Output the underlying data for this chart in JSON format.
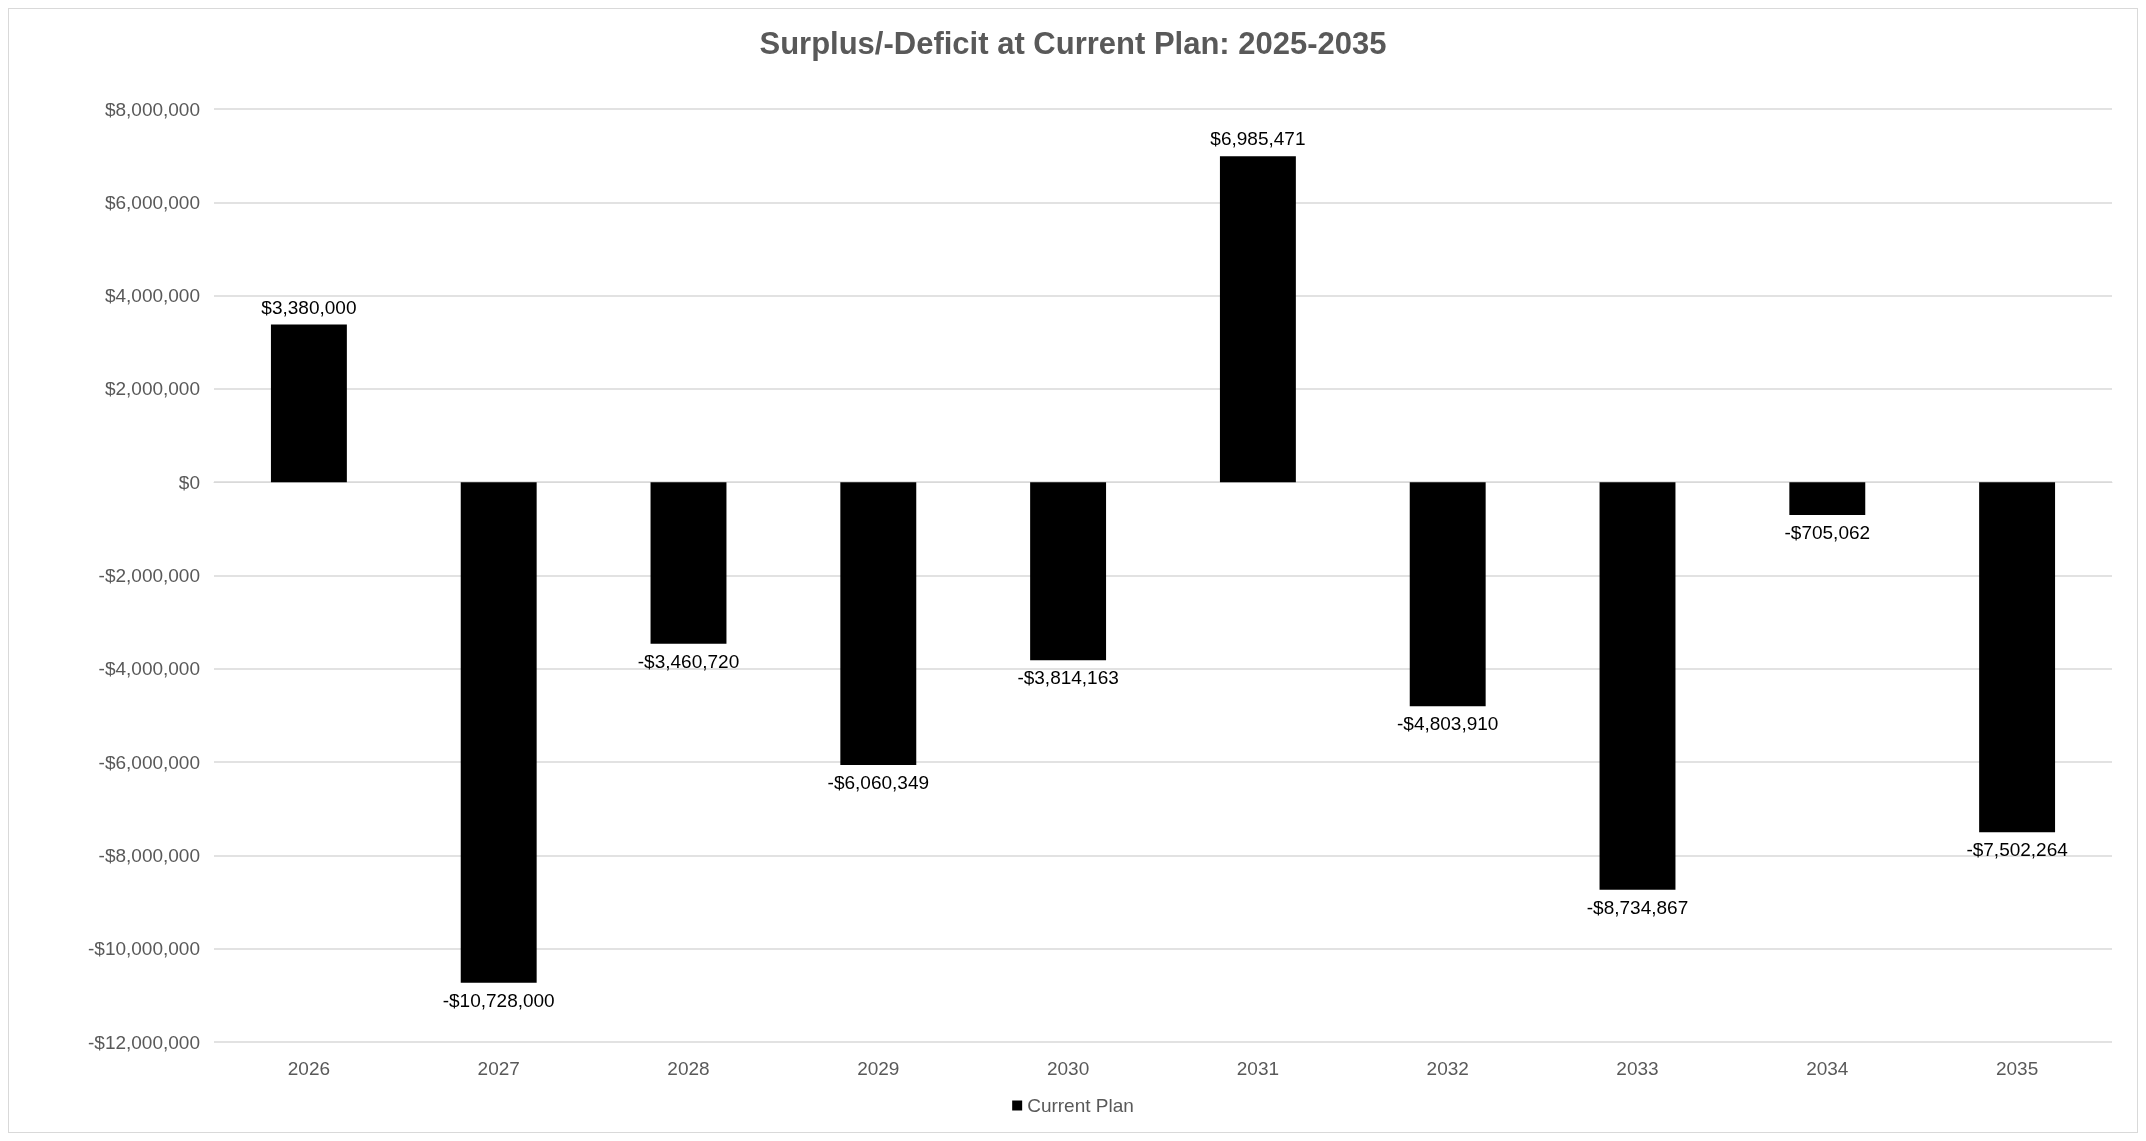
{
  "chart_data": {
    "type": "bar",
    "title": "Surplus/-Deficit at Current Plan: 2025-2035",
    "categories": [
      "2026",
      "2027",
      "2028",
      "2029",
      "2030",
      "2031",
      "2032",
      "2033",
      "2034",
      "2035"
    ],
    "series": [
      {
        "name": "Current Plan",
        "color": "#000000",
        "values": [
          3380000,
          -10728000,
          -3460720,
          -6060349,
          -3814163,
          6985471,
          -4803910,
          -8734867,
          -705062,
          -7502264
        ],
        "value_labels": [
          "$3,380,000",
          "-$10,728,000",
          "-$3,460,720",
          "-$6,060,349",
          "-$3,814,163",
          "$6,985,471",
          "-$4,803,910",
          "-$8,734,867",
          "-$705,062",
          "-$7,502,264"
        ]
      }
    ],
    "ylim": [
      -12000000,
      8000000
    ],
    "yticks": [
      {
        "value": -12000000,
        "label": "-$12,000,000"
      },
      {
        "value": -10000000,
        "label": "-$10,000,000"
      },
      {
        "value": -8000000,
        "label": "-$8,000,000"
      },
      {
        "value": -6000000,
        "label": "-$6,000,000"
      },
      {
        "value": -4000000,
        "label": "-$4,000,000"
      },
      {
        "value": -2000000,
        "label": "-$2,000,000"
      },
      {
        "value": 0,
        "label": "$0"
      },
      {
        "value": 2000000,
        "label": "$2,000,000"
      },
      {
        "value": 4000000,
        "label": "$4,000,000"
      },
      {
        "value": 6000000,
        "label": "$6,000,000"
      },
      {
        "value": 8000000,
        "label": "$8,000,000"
      }
    ],
    "grid": "y",
    "legend": "bottom"
  }
}
